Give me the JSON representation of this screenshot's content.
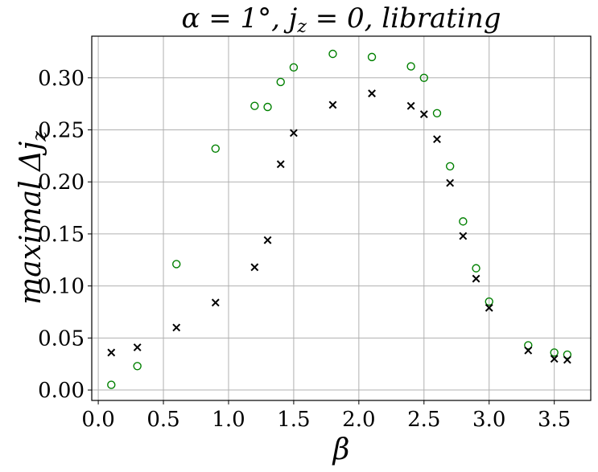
{
  "chart_data": {
    "type": "scatter",
    "title": "α = 1°, j_z = 0, librating",
    "xlabel": "β",
    "ylabel": "maximal Δj_z",
    "xlim": [
      -0.05,
      3.78
    ],
    "ylim": [
      -0.01,
      0.34
    ],
    "grid": true,
    "xticks": [
      {
        "v": 0.0,
        "label": "0.0"
      },
      {
        "v": 0.5,
        "label": "0.5"
      },
      {
        "v": 1.0,
        "label": "1.0"
      },
      {
        "v": 1.5,
        "label": "1.5"
      },
      {
        "v": 2.0,
        "label": "2.0"
      },
      {
        "v": 2.5,
        "label": "2.5"
      },
      {
        "v": 3.0,
        "label": "3.0"
      },
      {
        "v": 3.5,
        "label": "3.5"
      }
    ],
    "yticks": [
      {
        "v": 0.0,
        "label": "0.00"
      },
      {
        "v": 0.05,
        "label": "0.05"
      },
      {
        "v": 0.1,
        "label": "0.10"
      },
      {
        "v": 0.15,
        "label": "0.15"
      },
      {
        "v": 0.2,
        "label": "0.20"
      },
      {
        "v": 0.25,
        "label": "0.25"
      },
      {
        "v": 0.3,
        "label": "0.30"
      }
    ],
    "series": [
      {
        "marker": "circle-open",
        "color": "#008000",
        "x": [
          0.1,
          0.3,
          0.6,
          0.9,
          1.2,
          1.3,
          1.4,
          1.5,
          1.8,
          2.1,
          2.4,
          2.5,
          2.6,
          2.7,
          2.8,
          2.9,
          3.0,
          3.3,
          3.5,
          3.6
        ],
        "y": [
          0.005,
          0.023,
          0.121,
          0.232,
          0.273,
          0.272,
          0.296,
          0.31,
          0.323,
          0.32,
          0.311,
          0.3,
          0.266,
          0.215,
          0.162,
          0.117,
          0.085,
          0.043,
          0.036,
          0.034
        ]
      },
      {
        "marker": "x",
        "color": "#000000",
        "x": [
          0.1,
          0.3,
          0.6,
          0.9,
          1.2,
          1.3,
          1.4,
          1.5,
          1.8,
          2.1,
          2.4,
          2.5,
          2.6,
          2.7,
          2.8,
          2.9,
          3.0,
          3.3,
          3.5,
          3.6
        ],
        "y": [
          0.036,
          0.041,
          0.06,
          0.084,
          0.118,
          0.144,
          0.217,
          0.247,
          0.274,
          0.285,
          0.273,
          0.265,
          0.241,
          0.199,
          0.148,
          0.107,
          0.079,
          0.038,
          0.03,
          0.029
        ]
      }
    ]
  }
}
